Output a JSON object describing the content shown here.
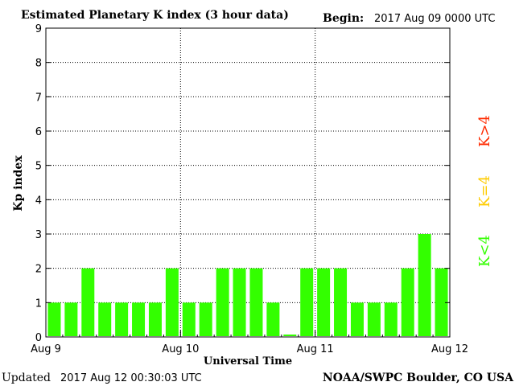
{
  "chart_data": {
    "type": "bar",
    "title": "Estimated Planetary K index (3 hour data)",
    "begin_label": "Begin:",
    "begin_value": "2017 Aug 09 0000 UTC",
    "ylabel": "Kp index",
    "xlabel": "Universal Time",
    "ylim": [
      0,
      9
    ],
    "yticks": [
      "0",
      "1",
      "2",
      "3",
      "4",
      "5",
      "6",
      "7",
      "8",
      "9"
    ],
    "xticks": [
      "Aug 9",
      "Aug 10",
      "Aug 11",
      "Aug 12"
    ],
    "values": [
      1,
      1,
      2,
      1,
      1,
      1,
      1,
      2,
      1,
      1,
      2,
      2,
      2,
      1,
      0.07,
      2,
      2,
      2,
      1,
      1,
      1,
      2,
      3,
      2
    ],
    "bar_color": "#33ff00",
    "grid": true,
    "legend": [
      {
        "label": "K<4",
        "color": "#33ff00"
      },
      {
        "label": "K=4",
        "color": "#ffcc00"
      },
      {
        "label": "K>4",
        "color": "#ff2a00"
      }
    ]
  },
  "footer": {
    "updated_label": "Updated",
    "updated_value": "2017 Aug 12 00:30:03 UTC",
    "source": "NOAA/SWPC Boulder, CO USA"
  }
}
